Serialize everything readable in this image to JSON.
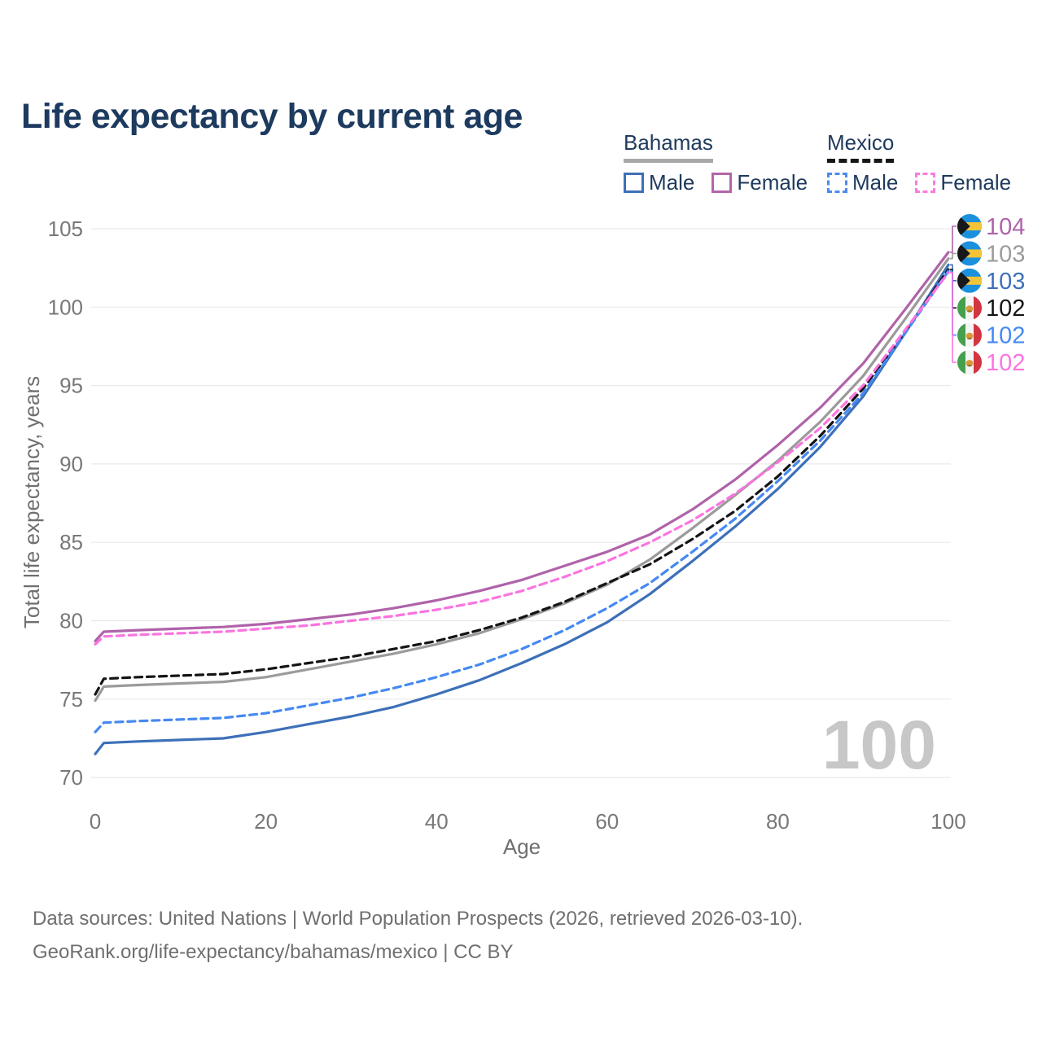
{
  "title": "Life expectancy by current age",
  "legend": {
    "groups": [
      {
        "name": "Bahamas",
        "underline": "solid",
        "underline_color": "#a8a8a8",
        "items": [
          {
            "label": "Male",
            "color": "#3d70b8",
            "dash": false
          },
          {
            "label": "Female",
            "color": "#b266a8",
            "dash": false
          }
        ]
      },
      {
        "name": "Mexico",
        "underline": "dashed",
        "underline_color": "#161616",
        "items": [
          {
            "label": "Male",
            "color": "#4a8cf0",
            "dash": true
          },
          {
            "label": "Female",
            "color": "#fb7ce0",
            "dash": true
          }
        ]
      }
    ]
  },
  "chart_data": {
    "type": "line",
    "title": "Life expectancy by current age",
    "xlabel": "Age",
    "ylabel": "Total life expectancy, years",
    "xlim": [
      0,
      100
    ],
    "ylim": [
      69.5,
      105.5
    ],
    "x_ticks": [
      0,
      20,
      40,
      60,
      80,
      100
    ],
    "y_ticks": [
      70,
      75,
      80,
      85,
      90,
      95,
      100,
      105
    ],
    "grid": "horizontal",
    "age_indicator_watermark": "100",
    "x": [
      0,
      1,
      5,
      10,
      15,
      20,
      25,
      30,
      35,
      40,
      45,
      50,
      55,
      60,
      65,
      70,
      75,
      80,
      85,
      90,
      95,
      100
    ],
    "series": [
      {
        "name": "Bahamas Female",
        "country": "Bahamas",
        "sex": "Female",
        "color": "#af63a9",
        "style": "solid",
        "end_label": "104",
        "flag": "bahamas",
        "values": [
          78.7,
          79.3,
          79.4,
          79.5,
          79.6,
          79.8,
          80.1,
          80.4,
          80.8,
          81.3,
          81.9,
          82.6,
          83.5,
          84.4,
          85.5,
          87.1,
          89.0,
          91.2,
          93.6,
          96.4,
          99.9,
          103.5
        ]
      },
      {
        "name": "Bahamas Both sexes",
        "country": "Bahamas",
        "sex": "Both",
        "color": "#9b9b9b",
        "style": "solid",
        "end_label": "103",
        "flag": "bahamas",
        "values": [
          74.9,
          75.8,
          75.9,
          76.0,
          76.1,
          76.4,
          76.9,
          77.4,
          77.9,
          78.5,
          79.2,
          80.1,
          81.1,
          82.3,
          83.9,
          85.9,
          88.0,
          90.2,
          92.7,
          95.6,
          99.3,
          103.1
        ]
      },
      {
        "name": "Bahamas Male",
        "country": "Bahamas",
        "sex": "Male",
        "color": "#3d70b8",
        "style": "solid",
        "end_label": "103",
        "flag": "bahamas",
        "values": [
          71.5,
          72.2,
          72.3,
          72.4,
          72.5,
          72.9,
          73.4,
          73.9,
          74.5,
          75.3,
          76.2,
          77.3,
          78.5,
          79.9,
          81.7,
          83.8,
          86.0,
          88.4,
          91.1,
          94.3,
          98.4,
          102.7
        ]
      },
      {
        "name": "Mexico Both sexes",
        "country": "Mexico",
        "sex": "Both",
        "color": "#141414",
        "style": "dashed",
        "end_label": "102",
        "flag": "mexico",
        "values": [
          75.3,
          76.3,
          76.4,
          76.5,
          76.6,
          76.9,
          77.3,
          77.7,
          78.2,
          78.7,
          79.4,
          80.2,
          81.2,
          82.4,
          83.6,
          85.2,
          87.0,
          89.2,
          91.8,
          94.8,
          98.5,
          102.4
        ]
      },
      {
        "name": "Mexico Male",
        "country": "Mexico",
        "sex": "Male",
        "color": "#4589f2",
        "style": "dashed",
        "end_label": "102",
        "flag": "mexico",
        "values": [
          72.9,
          73.5,
          73.6,
          73.7,
          73.8,
          74.1,
          74.6,
          75.1,
          75.7,
          76.4,
          77.2,
          78.2,
          79.4,
          80.8,
          82.4,
          84.4,
          86.5,
          88.9,
          91.5,
          94.5,
          98.4,
          102.3
        ]
      },
      {
        "name": "Mexico Female",
        "country": "Mexico",
        "sex": "Female",
        "color": "#fb74e0",
        "style": "dashed",
        "end_label": "102",
        "flag": "mexico",
        "values": [
          78.5,
          79.0,
          79.1,
          79.2,
          79.3,
          79.5,
          79.7,
          80.0,
          80.3,
          80.7,
          81.2,
          81.9,
          82.8,
          83.8,
          85.0,
          86.4,
          88.1,
          90.1,
          92.3,
          95.0,
          98.6,
          102.2
        ]
      }
    ],
    "flag_colors": {
      "bahamas": {
        "band": "#1b90dd",
        "gold": "#f4c438",
        "chevron": "#17171c"
      },
      "mexico": {
        "green": "#44a04c",
        "white": "#f4f4f4",
        "red": "#d23440",
        "emblem": "#d99a3a",
        "emblem_dark": "#a96b22"
      }
    },
    "text_colors": {
      "ticks": "#787878",
      "axis_title": "#6f6f6f",
      "grid": "#eaeaea",
      "watermark": "#c7c7c7"
    }
  },
  "footer": {
    "line1": "Data sources: United Nations | World Population Prospects (2026, retrieved 2026-03-10).",
    "line2": "GeoRank.org/life-expectancy/bahamas/mexico | CC BY"
  }
}
